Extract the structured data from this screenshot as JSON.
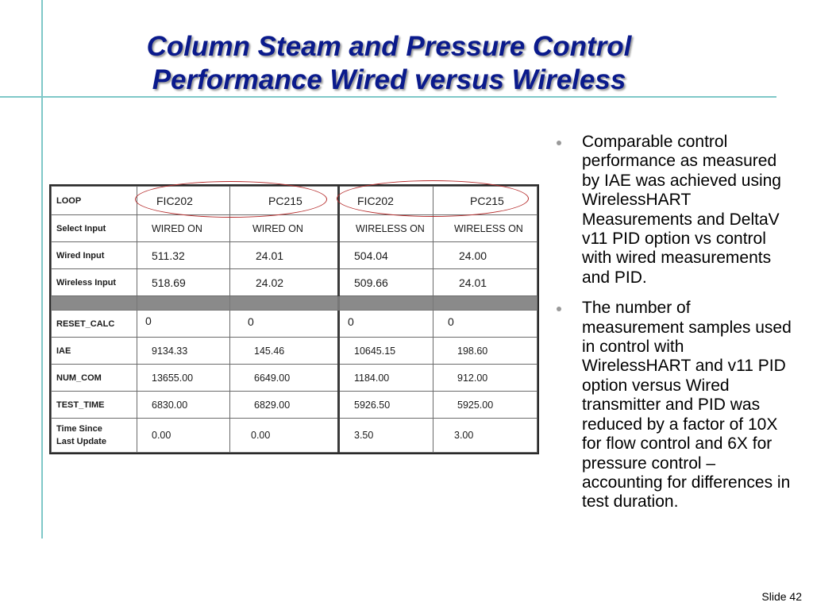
{
  "title": {
    "line1": "Column Steam and Pressure Control",
    "line2": "Performance Wired versus Wireless"
  },
  "table": {
    "header": [
      "LOOP",
      "FIC202",
      "PC215",
      "FIC202",
      "PC215"
    ],
    "rows": [
      [
        "Select Input",
        "WIRED ON",
        "WIRED ON",
        "WIRELESS ON",
        "WIRELESS ON"
      ],
      [
        "Wired Input",
        "511.32",
        "24.01",
        "504.04",
        "24.00"
      ],
      [
        "Wireless Input",
        "518.69",
        "24.02",
        "509.66",
        "24.01"
      ],
      [
        "RESET_CALC",
        "0",
        "0",
        "0",
        "0"
      ],
      [
        "IAE",
        "9134.33",
        "145.46",
        "10645.15",
        "198.60"
      ],
      [
        "NUM_COM",
        "13655.00",
        "6649.00",
        "1184.00",
        "912.00"
      ],
      [
        "TEST_TIME",
        "6830.00",
        "6829.00",
        "5926.50",
        "5925.00"
      ]
    ],
    "last_row": {
      "label_line1": "Time Since",
      "label_line2": "Last Update",
      "values": [
        "0.00",
        "0.00",
        "3.50",
        "3.00"
      ]
    }
  },
  "bullets": [
    "Comparable control performance as measured by IAE was achieved using WirelessHART Measurements and DeltaV v11 PID option vs control  with wired measurements and PID.",
    "The number of measurement samples used in control with WirelessHART and v11 PID option versus Wired transmitter and PID was reduced by a factor of 10X for flow control and 6X for pressure control – accounting for differences in test duration."
  ],
  "slide_number": "Slide 42"
}
